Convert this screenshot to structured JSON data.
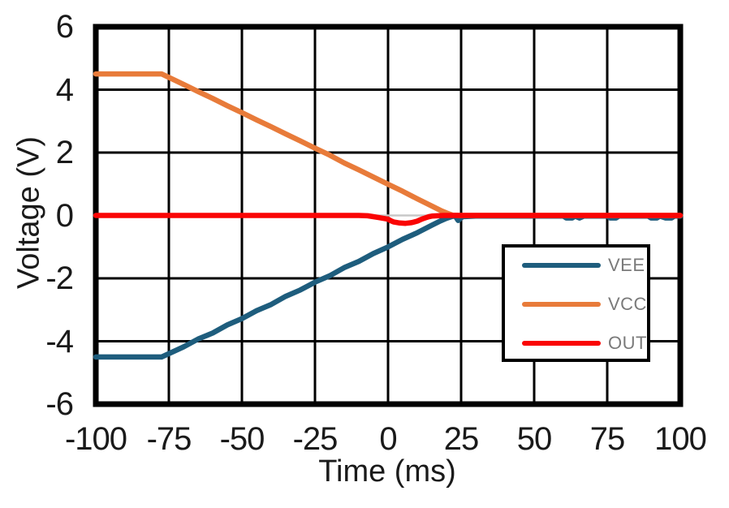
{
  "figure": {
    "background": "#FFFFFF",
    "frame_color": "#000000",
    "grid_color": "#000000",
    "zero_axis_color": "#C8C8C8",
    "text_color": "#1A1A1A"
  },
  "chart_data": {
    "type": "line",
    "title": "",
    "xlabel": "Time (ms)",
    "ylabel": "Voltage (V)",
    "xlim": [
      -100,
      100
    ],
    "ylim": [
      -6,
      6
    ],
    "xticks": [
      -100,
      -75,
      -50,
      -25,
      0,
      25,
      50,
      75,
      100
    ],
    "xticklabels": [
      "-100",
      "-75",
      "-50",
      "-25",
      "0",
      "25",
      "50",
      "75",
      "100"
    ],
    "yticks": [
      6,
      4,
      2,
      0,
      -2,
      -4,
      -6
    ],
    "yticklabels": [
      "6",
      "4",
      "2",
      "0",
      "-2",
      "-4",
      "-6"
    ],
    "grid": true,
    "legend": {
      "position": "inside-lower-right",
      "text_color": "#7A7A7A",
      "border_color": "#000000",
      "background": "#FFFFFF"
    },
    "series": [
      {
        "name": "VEE",
        "color": "#1E5D7D",
        "points": [
          [
            -100,
            -4.5
          ],
          [
            -77.5,
            -4.5
          ],
          [
            -70,
            -4.18
          ],
          [
            -65,
            -3.93
          ],
          [
            -60,
            -3.74
          ],
          [
            -55,
            -3.48
          ],
          [
            -50,
            -3.28
          ],
          [
            -45,
            -3.03
          ],
          [
            -40,
            -2.83
          ],
          [
            -35,
            -2.57
          ],
          [
            -30,
            -2.37
          ],
          [
            -25,
            -2.12
          ],
          [
            -20,
            -1.92
          ],
          [
            -15,
            -1.66
          ],
          [
            -10,
            -1.46
          ],
          [
            -5,
            -1.21
          ],
          [
            0,
            -1.0
          ],
          [
            5,
            -0.76
          ],
          [
            10,
            -0.55
          ],
          [
            15,
            -0.31
          ],
          [
            18,
            -0.17
          ],
          [
            20,
            -0.09
          ],
          [
            22,
            -0.03
          ],
          [
            23,
            -0.02
          ],
          [
            24,
            -0.16
          ],
          [
            25.5,
            -0.04
          ],
          [
            30,
            -0.02
          ],
          [
            60,
            -0.02
          ],
          [
            61,
            -0.08
          ],
          [
            63,
            -0.08
          ],
          [
            64,
            -0.02
          ],
          [
            65.5,
            -0.08
          ],
          [
            67,
            -0.02
          ],
          [
            75,
            -0.02
          ],
          [
            76,
            -0.08
          ],
          [
            78,
            -0.08
          ],
          [
            79,
            -0.02
          ],
          [
            89,
            -0.02
          ],
          [
            90,
            -0.08
          ],
          [
            92,
            -0.08
          ],
          [
            93,
            -0.02
          ],
          [
            95,
            -0.08
          ],
          [
            97,
            -0.08
          ],
          [
            98,
            -0.02
          ],
          [
            100,
            -0.02
          ]
        ]
      },
      {
        "name": "VCC",
        "color": "#E87B3A",
        "points": [
          [
            -100,
            4.5
          ],
          [
            -77.5,
            4.5
          ],
          [
            -70,
            4.17
          ],
          [
            -65,
            3.94
          ],
          [
            -60,
            3.72
          ],
          [
            -55,
            3.49
          ],
          [
            -50,
            3.27
          ],
          [
            -45,
            3.04
          ],
          [
            -40,
            2.82
          ],
          [
            -35,
            2.59
          ],
          [
            -30,
            2.37
          ],
          [
            -25,
            2.14
          ],
          [
            -20,
            1.92
          ],
          [
            -15,
            1.67
          ],
          [
            -10,
            1.45
          ],
          [
            -5,
            1.22
          ],
          [
            0,
            0.99
          ],
          [
            5,
            0.77
          ],
          [
            10,
            0.53
          ],
          [
            15,
            0.3
          ],
          [
            18,
            0.16
          ],
          [
            20,
            0.08
          ],
          [
            22,
            0.01
          ],
          [
            25,
            0.0
          ],
          [
            100,
            0.0
          ]
        ]
      },
      {
        "name": "OUT",
        "color": "#FA0404",
        "points": [
          [
            -100,
            0
          ],
          [
            -10,
            0
          ],
          [
            -7,
            -0.01
          ],
          [
            -5,
            -0.04
          ],
          [
            -3,
            -0.07
          ],
          [
            -1,
            -0.1
          ],
          [
            0,
            -0.12
          ],
          [
            1,
            -0.17
          ],
          [
            2,
            -0.21
          ],
          [
            4,
            -0.24
          ],
          [
            6,
            -0.25
          ],
          [
            8,
            -0.23
          ],
          [
            10,
            -0.18
          ],
          [
            11,
            -0.14
          ],
          [
            12,
            -0.1
          ],
          [
            13,
            -0.07
          ],
          [
            14,
            -0.04
          ],
          [
            15,
            -0.02
          ],
          [
            17,
            -0.01
          ],
          [
            19,
            0
          ],
          [
            100,
            0
          ]
        ]
      }
    ]
  }
}
